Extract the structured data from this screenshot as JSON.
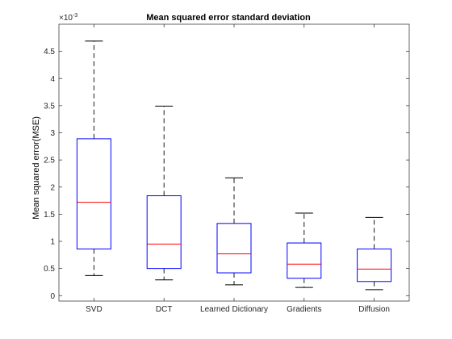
{
  "chart_data": {
    "type": "box",
    "title": "Mean squared error standard deviation",
    "xlabel": "",
    "ylabel": "Mean squared error(MSE)",
    "y_exponent_label": "×10",
    "y_exponent_power": "-3",
    "ylim": [
      -0.1,
      5.0
    ],
    "yticks": [
      0,
      0.5,
      1,
      1.5,
      2,
      2.5,
      3,
      3.5,
      4,
      4.5
    ],
    "ytick_labels": [
      "0",
      "0.5",
      "1",
      "1.5",
      "2",
      "2.5",
      "3",
      "3.5",
      "4",
      "4.5"
    ],
    "grid": false,
    "categories": [
      "SVD",
      "DCT",
      "Learned Dictionary",
      "Gradients",
      "Diffusion"
    ],
    "boxes": [
      {
        "category": "SVD",
        "whisker_low": 0.37,
        "q1": 0.86,
        "median": 1.72,
        "q3": 2.89,
        "whisker_high": 4.69
      },
      {
        "category": "DCT",
        "whisker_low": 0.29,
        "q1": 0.5,
        "median": 0.95,
        "q3": 1.84,
        "whisker_high": 3.49
      },
      {
        "category": "Learned Dictionary",
        "whisker_low": 0.2,
        "q1": 0.42,
        "median": 0.77,
        "q3": 1.33,
        "whisker_high": 2.17
      },
      {
        "category": "Gradients",
        "whisker_low": 0.15,
        "q1": 0.32,
        "median": 0.58,
        "q3": 0.97,
        "whisker_high": 1.52
      },
      {
        "category": "Diffusion",
        "whisker_low": 0.11,
        "q1": 0.26,
        "median": 0.49,
        "q3": 0.86,
        "whisker_high": 1.44
      }
    ],
    "colors": {
      "box": "#0000ff",
      "median": "#ff0000",
      "whisker": "#000000",
      "axis": "#262626"
    }
  }
}
